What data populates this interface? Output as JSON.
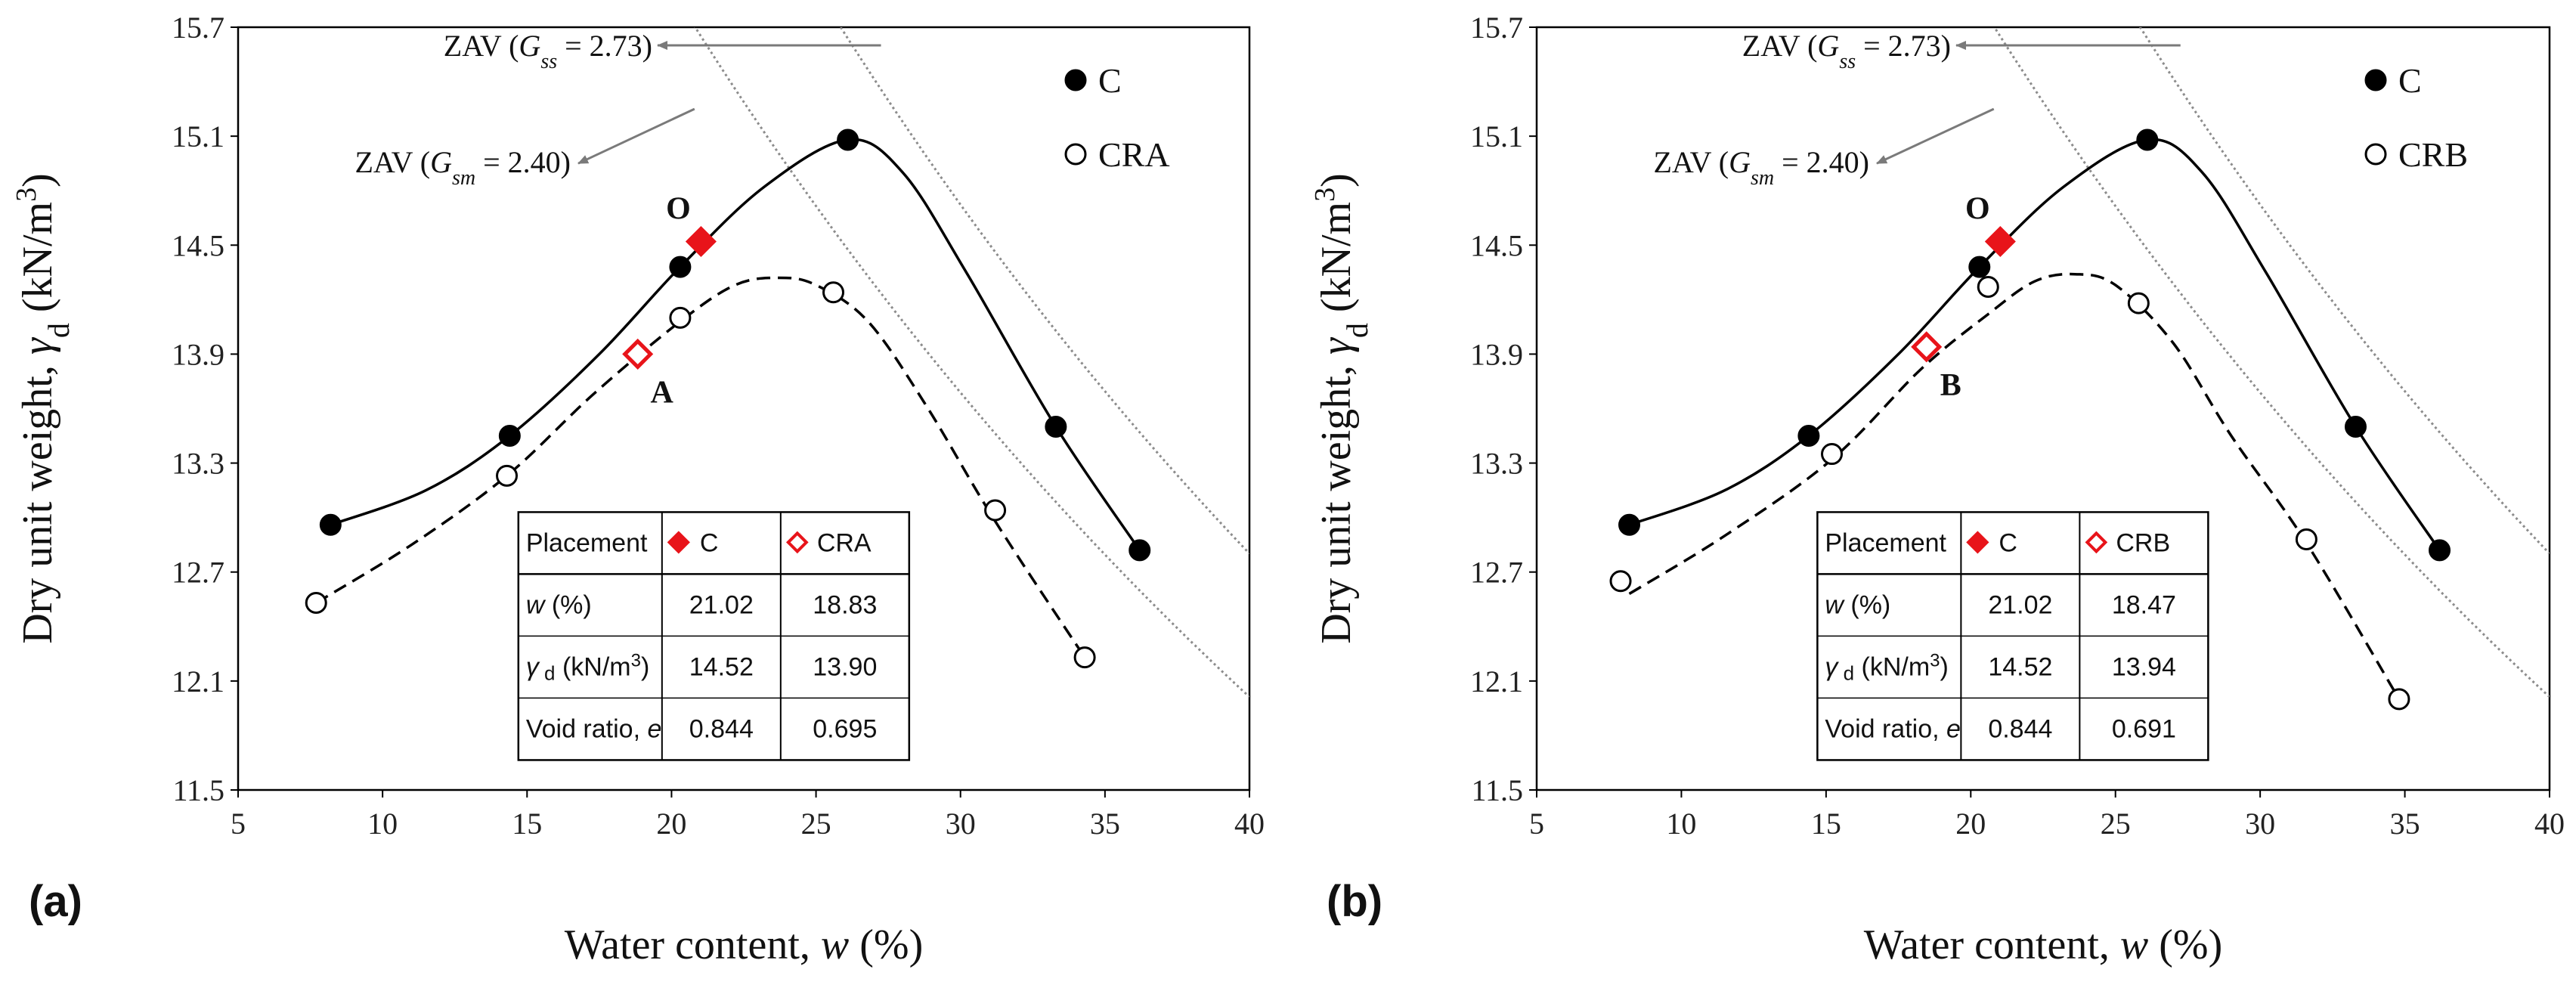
{
  "chart_data": [
    {
      "type": "scatter",
      "panel_label": "(a)",
      "xlabel": "Water content, w (%)",
      "ylabel": "Dry unit weight, γd (kN/m3)",
      "xlim": [
        5,
        40
      ],
      "ylim": [
        11.5,
        15.7
      ],
      "xticks": [
        5,
        10,
        15,
        20,
        25,
        30,
        35,
        40
      ],
      "yticks": [
        11.5,
        12.1,
        12.7,
        13.3,
        13.9,
        14.5,
        15.1,
        15.7
      ],
      "grid": false,
      "legend_position": "top-right",
      "series": [
        {
          "name": "C",
          "marker": "filled-circle",
          "points": [
            [
              8.2,
              12.96
            ],
            [
              14.4,
              13.45
            ],
            [
              20.3,
              14.38
            ],
            [
              26.1,
              15.08
            ],
            [
              33.3,
              13.5
            ],
            [
              36.2,
              12.82
            ]
          ],
          "curve": [
            [
              8.2,
              12.96
            ],
            [
              11.5,
              13.15
            ],
            [
              14.4,
              13.45
            ],
            [
              17.5,
              13.9
            ],
            [
              20.3,
              14.38
            ],
            [
              23.2,
              14.82
            ],
            [
              26.1,
              15.08
            ],
            [
              28.0,
              14.9
            ],
            [
              30.2,
              14.35
            ],
            [
              33.3,
              13.5
            ],
            [
              36.2,
              12.82
            ]
          ],
          "curve_style": "solid"
        },
        {
          "name": "CRA",
          "marker": "open-circle",
          "points": [
            [
              7.7,
              12.53
            ],
            [
              14.3,
              13.23
            ],
            [
              20.3,
              14.1
            ],
            [
              25.6,
              14.24
            ],
            [
              31.2,
              13.04
            ],
            [
              34.3,
              12.23
            ]
          ],
          "curve": [
            [
              7.7,
              12.53
            ],
            [
              11.0,
              12.85
            ],
            [
              14.3,
              13.23
            ],
            [
              17.3,
              13.68
            ],
            [
              20.3,
              14.08
            ],
            [
              22.2,
              14.28
            ],
            [
              23.7,
              14.32
            ],
            [
              25.0,
              14.28
            ],
            [
              26.8,
              14.08
            ],
            [
              28.8,
              13.62
            ],
            [
              31.2,
              12.98
            ],
            [
              34.3,
              12.23
            ]
          ],
          "curve_style": "dashed"
        }
      ],
      "placements": [
        {
          "label": "O",
          "marker": "filled-diamond",
          "color": "#e8141a",
          "x": 21.02,
          "y": 14.52
        },
        {
          "label": "A",
          "marker": "open-diamond",
          "color": "#e8141a",
          "x": 18.83,
          "y": 13.9
        }
      ],
      "zav_lines": [
        {
          "label_prefix": "ZAV (",
          "symbol": "G",
          "subscript": "ss",
          "label_suffix": " = 2.73)",
          "Gs": 2.73
        },
        {
          "label_prefix": "ZAV (",
          "symbol": "G",
          "subscript": "sm",
          "label_suffix": " = 2.40)",
          "Gs": 2.4
        }
      ],
      "table": {
        "header": [
          "Placement",
          "C",
          "CRA"
        ],
        "rows": [
          {
            "label": "w (%)",
            "c": "21.02",
            "other": "18.83"
          },
          {
            "label": "γ d (kN/m3)",
            "c": "14.52",
            "other": "13.90"
          },
          {
            "label": "Void ratio, e",
            "c": "0.844",
            "other": "0.695"
          }
        ]
      }
    },
    {
      "type": "scatter",
      "panel_label": "(b)",
      "xlabel": "Water content, w (%)",
      "ylabel": "Dry unit weight, γd (kN/m3)",
      "xlim": [
        5,
        40
      ],
      "ylim": [
        11.5,
        15.7
      ],
      "xticks": [
        5,
        10,
        15,
        20,
        25,
        30,
        35,
        40
      ],
      "yticks": [
        11.5,
        12.1,
        12.7,
        13.3,
        13.9,
        14.5,
        15.1,
        15.7
      ],
      "grid": false,
      "legend_position": "top-right",
      "series": [
        {
          "name": "C",
          "marker": "filled-circle",
          "points": [
            [
              8.2,
              12.96
            ],
            [
              14.4,
              13.45
            ],
            [
              20.3,
              14.38
            ],
            [
              26.1,
              15.08
            ],
            [
              33.3,
              13.5
            ],
            [
              36.2,
              12.82
            ]
          ],
          "curve": [
            [
              8.2,
              12.96
            ],
            [
              11.5,
              13.15
            ],
            [
              14.4,
              13.45
            ],
            [
              17.5,
              13.9
            ],
            [
              20.3,
              14.38
            ],
            [
              23.2,
              14.82
            ],
            [
              26.1,
              15.08
            ],
            [
              28.0,
              14.9
            ],
            [
              30.2,
              14.35
            ],
            [
              33.3,
              13.5
            ],
            [
              36.2,
              12.82
            ]
          ],
          "curve_style": "solid"
        },
        {
          "name": "CRB",
          "marker": "open-circle",
          "points": [
            [
              7.9,
              12.65
            ],
            [
              15.2,
              13.35
            ],
            [
              20.6,
              14.27
            ],
            [
              25.8,
              14.18
            ],
            [
              31.6,
              12.88
            ],
            [
              34.8,
              12.0
            ]
          ],
          "curve": [
            [
              8.2,
              12.58
            ],
            [
              11.5,
              12.9
            ],
            [
              15.2,
              13.32
            ],
            [
              18.3,
              13.82
            ],
            [
              20.6,
              14.12
            ],
            [
              22.2,
              14.3
            ],
            [
              23.6,
              14.34
            ],
            [
              25.0,
              14.28
            ],
            [
              27.0,
              13.96
            ],
            [
              29.0,
              13.45
            ],
            [
              31.6,
              12.86
            ],
            [
              34.8,
              12.0
            ]
          ],
          "curve_style": "dashed"
        }
      ],
      "placements": [
        {
          "label": "O",
          "marker": "filled-diamond",
          "color": "#e8141a",
          "x": 21.02,
          "y": 14.52
        },
        {
          "label": "B",
          "marker": "open-diamond",
          "color": "#e8141a",
          "x": 18.47,
          "y": 13.94
        }
      ],
      "zav_lines": [
        {
          "label_prefix": "ZAV (",
          "symbol": "G",
          "subscript": "ss",
          "label_suffix": " = 2.73)",
          "Gs": 2.73
        },
        {
          "label_prefix": "ZAV (",
          "symbol": "G",
          "subscript": "sm",
          "label_suffix": " = 2.40)",
          "Gs": 2.4
        }
      ],
      "table": {
        "header": [
          "Placement",
          "C",
          "CRB"
        ],
        "rows": [
          {
            "label": "w (%)",
            "c": "21.02",
            "other": "18.47"
          },
          {
            "label": "γ d (kN/m3)",
            "c": "14.52",
            "other": "13.94"
          },
          {
            "label": "Void ratio, e",
            "c": "0.844",
            "other": "0.691"
          }
        ]
      }
    }
  ],
  "colors": {
    "marker_red": "#e8141a",
    "zav_line": "#8c8c8c",
    "arrow": "#7a7a7a",
    "curve": "#000000"
  }
}
